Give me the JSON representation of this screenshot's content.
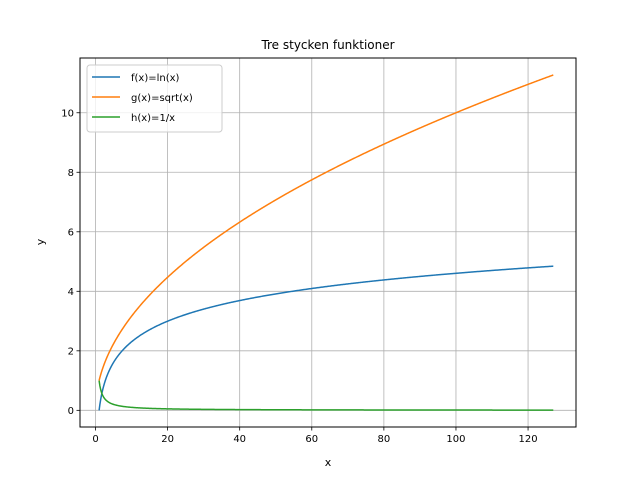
{
  "chart_data": {
    "type": "line",
    "title": "Tre stycken funktioner",
    "xlabel": "x",
    "ylabel": "y",
    "xlim": [
      -4.3,
      133.3
    ],
    "ylim": [
      -0.56,
      11.84
    ],
    "xticks": [
      "0",
      "20",
      "40",
      "60",
      "80",
      "100",
      "120"
    ],
    "yticks": [
      "0",
      "2",
      "4",
      "6",
      "8",
      "10"
    ],
    "grid": true,
    "legend_position": "top-left",
    "x_range": [
      1,
      127
    ],
    "series": [
      {
        "name": "f(x)=ln(x)",
        "function": "ln",
        "color": "#1f77b4",
        "points": [
          [
            1,
            0
          ],
          [
            2,
            0.69
          ],
          [
            5,
            1.61
          ],
          [
            10,
            2.3
          ],
          [
            20,
            3.0
          ],
          [
            40,
            3.69
          ],
          [
            60,
            4.09
          ],
          [
            80,
            4.38
          ],
          [
            100,
            4.61
          ],
          [
            127,
            4.84
          ]
        ]
      },
      {
        "name": "g(x)=sqrt(x)",
        "function": "sqrt",
        "color": "#ff7f0e",
        "points": [
          [
            1,
            1
          ],
          [
            2,
            1.41
          ],
          [
            5,
            2.24
          ],
          [
            10,
            3.16
          ],
          [
            20,
            4.47
          ],
          [
            40,
            6.32
          ],
          [
            60,
            7.75
          ],
          [
            80,
            8.94
          ],
          [
            100,
            10.0
          ],
          [
            127,
            11.27
          ]
        ]
      },
      {
        "name": "h(x)=1/x",
        "function": "reciprocal",
        "color": "#2ca02c",
        "points": [
          [
            1,
            1
          ],
          [
            2,
            0.5
          ],
          [
            5,
            0.2
          ],
          [
            10,
            0.1
          ],
          [
            20,
            0.05
          ],
          [
            40,
            0.025
          ],
          [
            60,
            0.017
          ],
          [
            80,
            0.0125
          ],
          [
            100,
            0.01
          ],
          [
            127,
            0.008
          ]
        ]
      }
    ]
  }
}
